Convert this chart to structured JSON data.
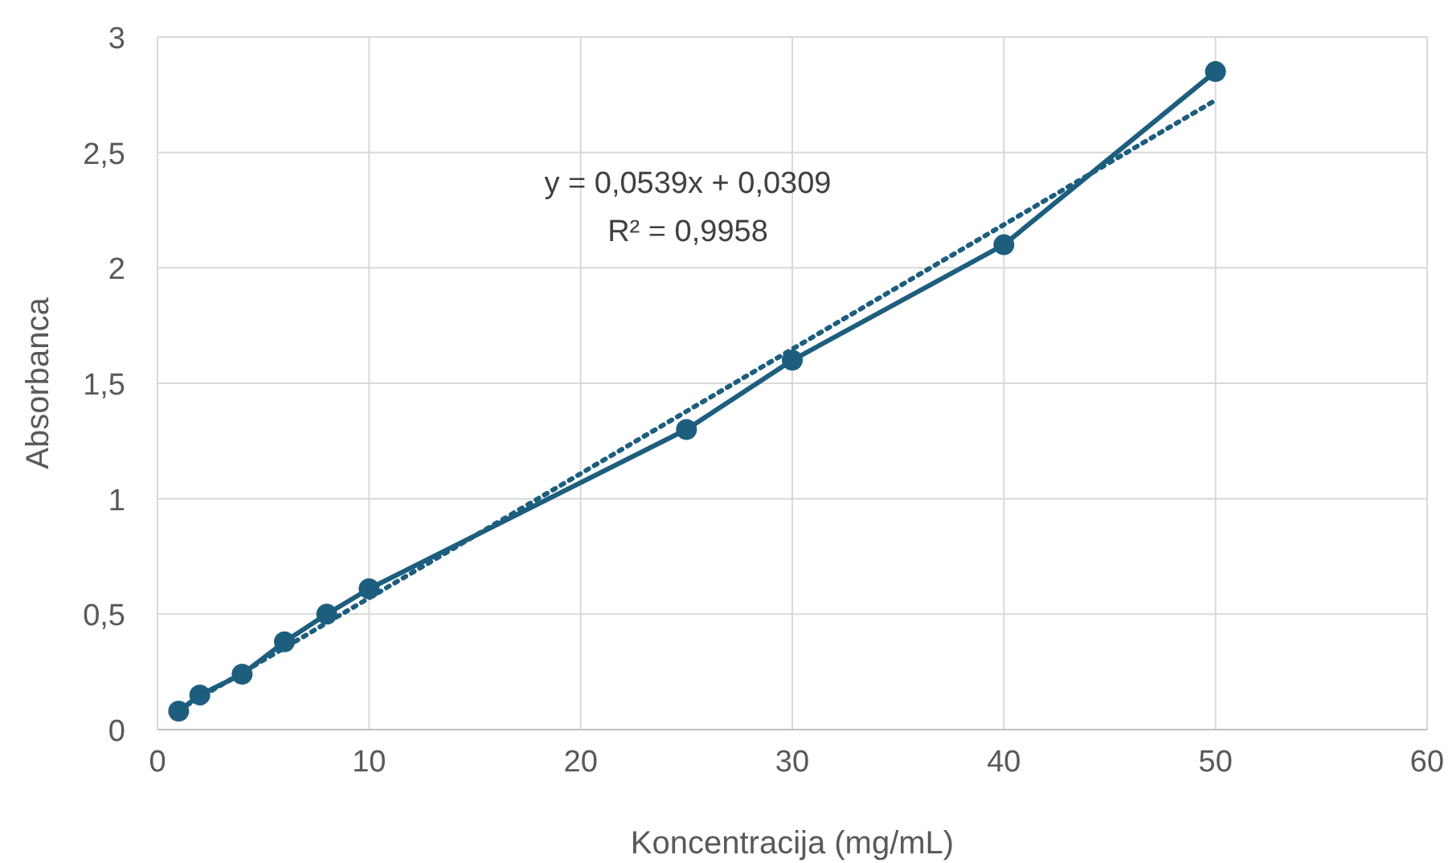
{
  "chart_data": {
    "type": "line",
    "xlabel": "Koncentracija (mg/mL)",
    "ylabel": "Absorbanca",
    "x": [
      1,
      2,
      4,
      6,
      8,
      10,
      25,
      30,
      40,
      50
    ],
    "series": [
      {
        "color": "#1d5e7e",
        "values": [
          0.08,
          0.15,
          0.24,
          0.38,
          0.5,
          0.61,
          1.3,
          1.6,
          2.1,
          2.85
        ],
        "marker": "circle",
        "line_style": "solid"
      },
      {
        "type": "line",
        "color": "#1d5e7e",
        "x": [
          1,
          50
        ],
        "values": [
          0.085,
          2.726
        ],
        "marker": "none",
        "line_style": "dotted"
      }
    ],
    "xlim": [
      0,
      60
    ],
    "xticks": [
      0,
      10,
      20,
      30,
      40,
      50,
      60
    ],
    "ylim": [
      0,
      3
    ],
    "yticks": [
      0,
      {
        "value": 0.5,
        "label": "0,5"
      },
      1,
      {
        "value": 1.5,
        "label": "1,5"
      },
      2,
      {
        "value": 2.5,
        "label": "2,5"
      },
      3
    ],
    "grid": true,
    "annotations": [
      "y = 0,0539x + 0,0309",
      "R² = 0,9958"
    ]
  }
}
